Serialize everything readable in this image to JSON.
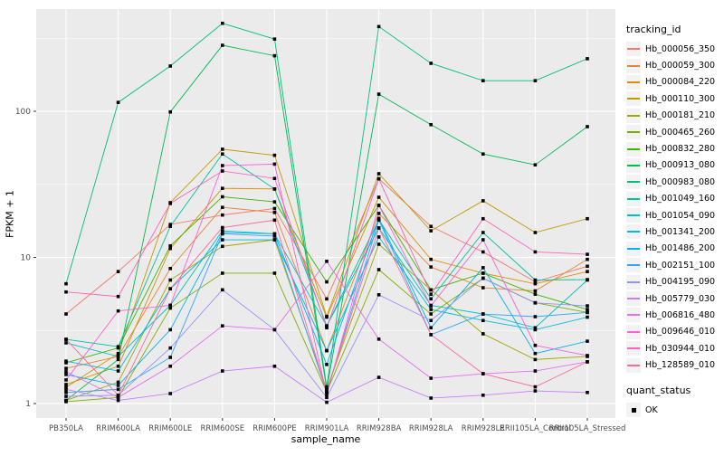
{
  "chart_data": {
    "type": "line",
    "title": "",
    "xlabel": "sample_name",
    "ylabel": "FPKM + 1",
    "y_scale": "log10",
    "y_ticks": [
      1,
      10,
      100
    ],
    "y_minor_ticks": [
      3.162,
      31.62,
      316.2
    ],
    "ylim": [
      1,
      500
    ],
    "grid": "on",
    "panel_bg": "#EBEBEB",
    "grid_color": "#FFFFFF",
    "tick_label_color": "#4D4D4D",
    "marker": "black-square",
    "legend_position": "right",
    "categories": [
      "PB350LA",
      "RRIM600LA",
      "RRIM600LE",
      "RRIM600SE",
      "RRIM600PE",
      "RRIM901LA",
      "RRIM928BA",
      "RRIM928LA",
      "RRIM928LE",
      "RRII105LA_Control",
      "RRII105LA_Stressed"
    ],
    "series": [
      {
        "name": "Hb_000056_350",
        "color": "#F8766D",
        "values": [
          4.1,
          8.0,
          16.8,
          19.5,
          21.6,
          5.2,
          34.5,
          16.3,
          10.9,
          6.8,
          8.7
        ]
      },
      {
        "name": "Hb_000059_300",
        "color": "#EA8331",
        "values": [
          1.74,
          2.1,
          8.4,
          22.0,
          20.3,
          2.3,
          20.0,
          8.6,
          6.2,
          5.9,
          9.7
        ]
      },
      {
        "name": "Hb_000084_220",
        "color": "#D89000",
        "values": [
          1.35,
          1.8,
          11.5,
          29.7,
          29.4,
          3.9,
          25.8,
          9.7,
          7.8,
          6.6,
          8.0
        ]
      },
      {
        "name": "Hb_000110_300",
        "color": "#C09B00",
        "values": [
          1.29,
          2.2,
          23.7,
          55.0,
          50.0,
          3.95,
          37.4,
          15.2,
          24.4,
          14.8,
          18.4
        ]
      },
      {
        "name": "Hb_000181_210",
        "color": "#A3A500",
        "values": [
          1.05,
          1.4,
          7.0,
          11.9,
          13.2,
          1.25,
          12.3,
          6.0,
          3.0,
          2.0,
          2.1
        ]
      },
      {
        "name": "Hb_000465_260",
        "color": "#7CAE00",
        "values": [
          1.03,
          1.1,
          4.5,
          7.8,
          7.8,
          1.2,
          8.25,
          4.1,
          7.2,
          4.9,
          4.2
        ]
      },
      {
        "name": "Hb_000832_280",
        "color": "#39B600",
        "values": [
          1.9,
          2.4,
          12.0,
          26.0,
          24.0,
          6.8,
          22.7,
          6.0,
          7.8,
          5.6,
          4.4
        ]
      },
      {
        "name": "Hb_000913_080",
        "color": "#00BB4E",
        "values": [
          1.05,
          2.0,
          99.0,
          283.0,
          240.0,
          1.25,
          131.0,
          81.0,
          51.0,
          43.0,
          78.5
        ]
      },
      {
        "name": "Hb_000983_080",
        "color": "#00BF7D",
        "values": [
          6.6,
          115.0,
          204.0,
          400.0,
          312.0,
          1.3,
          380.0,
          213.0,
          162.0,
          162.0,
          229.0
        ]
      },
      {
        "name": "Hb_001049_160",
        "color": "#00C1A3",
        "values": [
          2.75,
          2.45,
          16.3,
          51.0,
          29.4,
          3.4,
          18.1,
          5.2,
          14.8,
          7.0,
          7.05
        ]
      },
      {
        "name": "Hb_001054_090",
        "color": "#00BFC4",
        "values": [
          2.6,
          2.1,
          4.7,
          15.2,
          14.5,
          3.4,
          15.9,
          4.7,
          4.1,
          3.3,
          7.0
        ]
      },
      {
        "name": "Hb_001341_200",
        "color": "#00BAE0",
        "values": [
          1.95,
          1.67,
          6.1,
          13.2,
          13.2,
          2.3,
          13.8,
          4.4,
          3.7,
          3.2,
          3.9
        ]
      },
      {
        "name": "Hb_001486_200",
        "color": "#00B0F6",
        "values": [
          1.58,
          1.33,
          3.2,
          14.8,
          14.5,
          1.85,
          18.5,
          3.3,
          8.5,
          2.2,
          2.67
        ]
      },
      {
        "name": "Hb_002151_100",
        "color": "#35A2FF",
        "values": [
          1.19,
          1.25,
          2.07,
          14.5,
          14.0,
          1.2,
          18.0,
          2.96,
          4.1,
          3.93,
          4.2
        ]
      },
      {
        "name": "Hb_004195_090",
        "color": "#9590FF",
        "values": [
          1.12,
          1.14,
          2.4,
          6.0,
          3.2,
          1.1,
          5.55,
          3.7,
          7.2,
          4.88,
          4.66
        ]
      },
      {
        "name": "Hb_005779_030",
        "color": "#C77CFF",
        "values": [
          1.25,
          1.05,
          1.17,
          1.67,
          1.8,
          1.02,
          1.51,
          1.09,
          1.14,
          1.22,
          1.19
        ]
      },
      {
        "name": "Hb_006816_480",
        "color": "#E76BF3",
        "values": [
          1.65,
          1.1,
          1.8,
          3.4,
          3.2,
          9.4,
          2.76,
          1.49,
          1.6,
          1.67,
          1.93
        ]
      },
      {
        "name": "Hb_009646_010",
        "color": "#FA62DB",
        "values": [
          1.45,
          4.3,
          4.7,
          42.5,
          43.5,
          1.15,
          22.7,
          4.66,
          13.2,
          2.5,
          2.13
        ]
      },
      {
        "name": "Hb_030944_010",
        "color": "#FF62BC",
        "values": [
          5.8,
          5.4,
          23.4,
          39.0,
          34.7,
          3.3,
          34.5,
          5.6,
          18.4,
          10.9,
          10.5
        ]
      },
      {
        "name": "Hb_128589_010",
        "color": "#FF6A98",
        "values": [
          2.75,
          1.14,
          6.1,
          16.0,
          18.0,
          1.2,
          15.9,
          2.96,
          1.6,
          1.3,
          1.93
        ]
      }
    ]
  },
  "legend": {
    "tracking_title": "tracking_id",
    "quant_title": "quant_status",
    "quant_items": [
      {
        "label": "OK",
        "marker": "black-square-icon"
      }
    ]
  }
}
